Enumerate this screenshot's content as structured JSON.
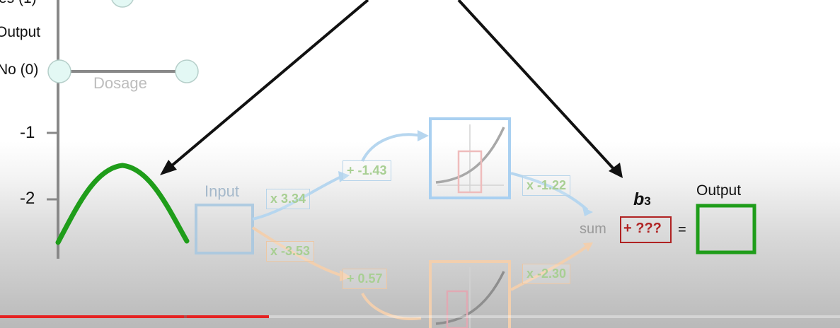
{
  "graph": {
    "y_labels": [
      "es (1)",
      "Output",
      "No (0)"
    ],
    "tick_labels": [
      "-1",
      "-2"
    ],
    "x_axis_label": "Dosage"
  },
  "network": {
    "input_label": "Input",
    "weight_top": "x 3.34",
    "weight_bottom": "x -3.53",
    "bias_top": "+ -1.43",
    "bias_bottom": "+ 0.57",
    "out_weight_top": "x -1.22",
    "out_weight_bottom": "x -2.30",
    "sum_label": "sum",
    "bias3_symbol": "b",
    "bias3_sub": "3",
    "unknown_bias": "+ ???",
    "equals": "=",
    "output_label": "Output"
  },
  "colors": {
    "green": "#1f9d1a",
    "red": "#b02222",
    "blue": "#9cc8ee",
    "orange": "#f2c296"
  },
  "video": {
    "progress_fraction": 0.32
  }
}
